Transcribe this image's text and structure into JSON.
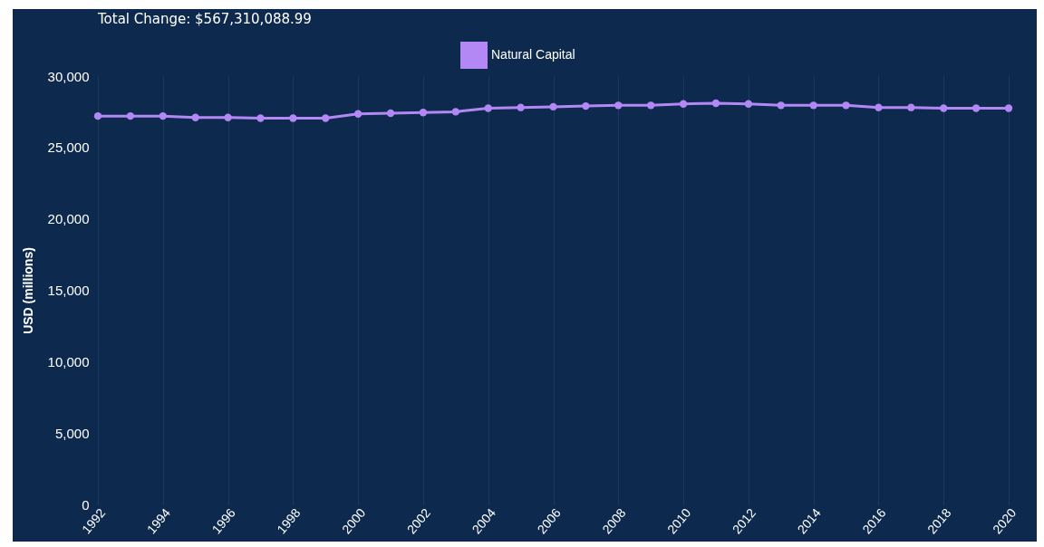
{
  "chart_data": {
    "type": "line",
    "title": "Total Change: $567,310,088.99",
    "ylabel": "USD (millions)",
    "x": [
      1992,
      1993,
      1994,
      1995,
      1996,
      1997,
      1998,
      1999,
      2000,
      2001,
      2002,
      2003,
      2004,
      2005,
      2006,
      2007,
      2008,
      2009,
      2010,
      2011,
      2012,
      2013,
      2014,
      2015,
      2016,
      2017,
      2018,
      2019,
      2020
    ],
    "series": [
      {
        "name": "Natural Capital",
        "color": "#b388f5",
        "values": [
          27200,
          27200,
          27200,
          27100,
          27100,
          27050,
          27050,
          27050,
          27350,
          27400,
          27450,
          27500,
          27750,
          27800,
          27850,
          27900,
          27950,
          27950,
          28050,
          28100,
          28050,
          27950,
          27950,
          27950,
          27800,
          27800,
          27750,
          27750,
          27750
        ]
      }
    ],
    "xlim": [
      1992,
      2020
    ],
    "xticks": [
      1992,
      1994,
      1996,
      1998,
      2000,
      2002,
      2004,
      2006,
      2008,
      2010,
      2012,
      2014,
      2016,
      2018,
      2020
    ],
    "ylim": [
      0,
      30000
    ],
    "yticks": [
      0,
      {
        "value": 5000,
        "label": "5,000"
      },
      {
        "value": 10000,
        "label": "10,000"
      },
      {
        "value": 15000,
        "label": "15,000"
      },
      {
        "value": 20000,
        "label": "20,000"
      },
      {
        "value": 25000,
        "label": "25,000"
      },
      {
        "value": 30000,
        "label": "30,000"
      }
    ],
    "grid": "x",
    "legend": "top",
    "marker": "circle",
    "line_style": "solid"
  }
}
